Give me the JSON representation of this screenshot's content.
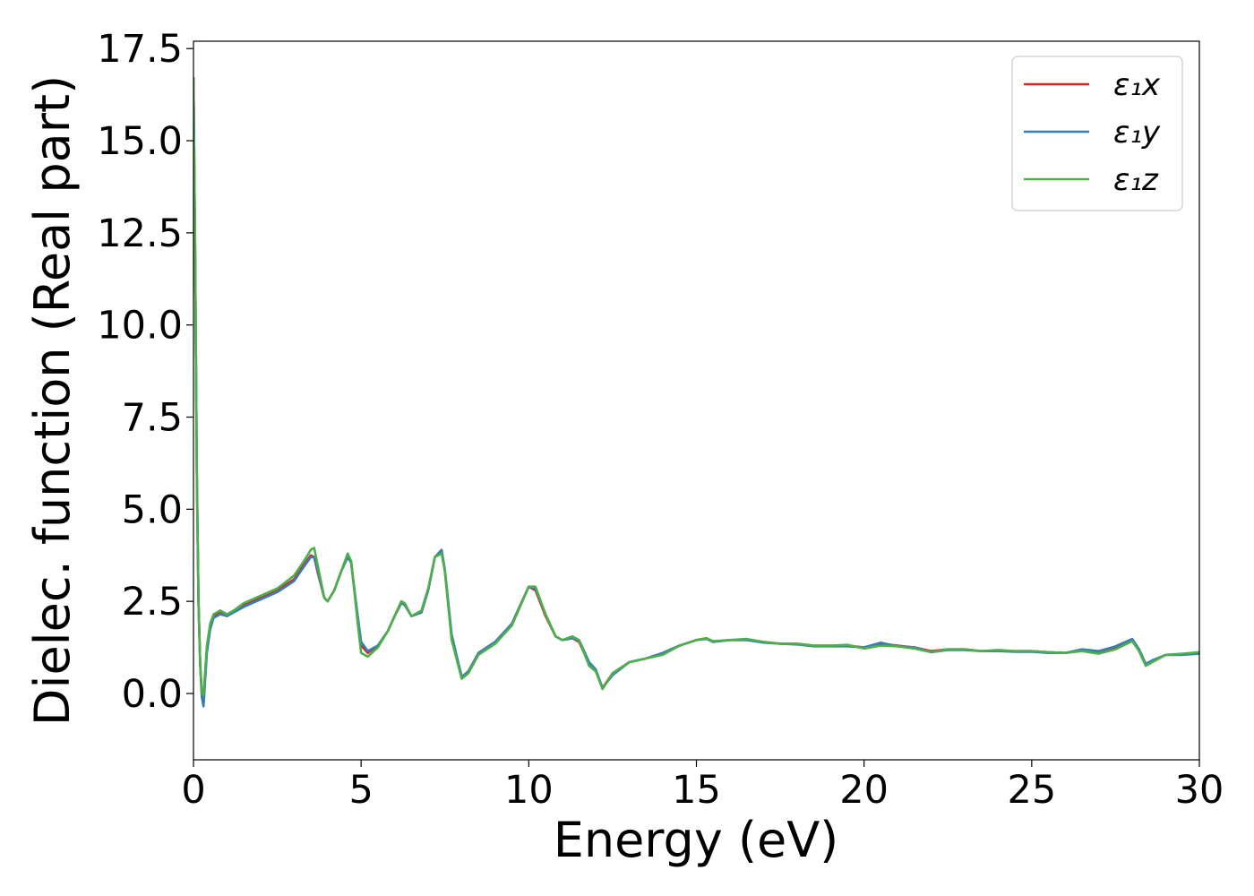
{
  "chart_data": {
    "type": "line",
    "xlabel": "Energy (eV)",
    "ylabel": "Dielec. function (Real part)",
    "xlim": [
      0,
      30
    ],
    "ylim": [
      -1.8,
      17.7
    ],
    "xticks": [
      0,
      5,
      10,
      15,
      20,
      25,
      30
    ],
    "xtick_labels": [
      "0",
      "5",
      "10",
      "15",
      "20",
      "25",
      "30"
    ],
    "yticks": [
      0.0,
      2.5,
      5.0,
      7.5,
      10.0,
      12.5,
      15.0,
      17.5
    ],
    "ytick_labels": [
      "0.0",
      "2.5",
      "5.0",
      "7.5",
      "10.0",
      "12.5",
      "15.0",
      "17.5"
    ],
    "grid": false,
    "legend": {
      "position": "top-right",
      "entries": [
        "ε₁x",
        "ε₁y",
        "ε₁z"
      ]
    },
    "series": [
      {
        "name": "ε₁x",
        "color": "#d62728",
        "x": [
          0.0,
          0.05,
          0.1,
          0.15,
          0.2,
          0.25,
          0.3,
          0.4,
          0.5,
          0.6,
          0.8,
          1.0,
          1.2,
          1.5,
          2.0,
          2.5,
          3.0,
          3.3,
          3.5,
          3.6,
          3.7,
          3.9,
          4.0,
          4.2,
          4.4,
          4.6,
          4.7,
          4.9,
          5.0,
          5.2,
          5.5,
          5.8,
          6.0,
          6.2,
          6.3,
          6.5,
          6.8,
          7.0,
          7.2,
          7.4,
          7.5,
          7.7,
          8.0,
          8.2,
          8.5,
          9.0,
          9.5,
          10.0,
          10.2,
          10.5,
          10.8,
          11.0,
          11.3,
          11.5,
          11.8,
          12.0,
          12.2,
          12.5,
          13.0,
          13.5,
          14.0,
          14.5,
          15.0,
          15.3,
          15.5,
          16.0,
          16.5,
          17.0,
          17.5,
          18.0,
          18.5,
          19.0,
          19.5,
          20.0,
          20.5,
          21.0,
          21.5,
          22.0,
          22.5,
          23.0,
          23.5,
          24.0,
          24.5,
          25.0,
          25.5,
          26.0,
          26.5,
          27.0,
          27.5,
          28.0,
          28.2,
          28.4,
          28.6,
          29.0,
          29.5,
          30.0
        ],
        "y": [
          16.7,
          12.0,
          6.0,
          2.5,
          0.8,
          -0.1,
          -0.1,
          1.2,
          1.8,
          2.1,
          2.2,
          2.1,
          2.25,
          2.4,
          2.6,
          2.8,
          3.1,
          3.5,
          3.75,
          3.7,
          3.3,
          2.6,
          2.5,
          2.8,
          3.3,
          3.75,
          3.6,
          2.0,
          1.3,
          1.1,
          1.3,
          1.7,
          2.1,
          2.5,
          2.4,
          2.1,
          2.2,
          2.8,
          3.7,
          3.85,
          3.3,
          1.5,
          0.45,
          0.6,
          1.1,
          1.4,
          1.9,
          2.9,
          2.8,
          2.1,
          1.55,
          1.45,
          1.5,
          1.4,
          0.8,
          0.6,
          0.15,
          0.55,
          0.85,
          0.95,
          1.1,
          1.3,
          1.45,
          1.5,
          1.4,
          1.45,
          1.45,
          1.4,
          1.35,
          1.35,
          1.3,
          1.3,
          1.3,
          1.25,
          1.35,
          1.3,
          1.25,
          1.15,
          1.2,
          1.2,
          1.15,
          1.15,
          1.15,
          1.15,
          1.12,
          1.1,
          1.18,
          1.12,
          1.25,
          1.42,
          1.2,
          0.8,
          0.88,
          1.05,
          1.05,
          1.1
        ]
      },
      {
        "name": "ε₁y",
        "color": "#377eb8",
        "x": [
          0.0,
          0.05,
          0.1,
          0.15,
          0.2,
          0.25,
          0.3,
          0.4,
          0.5,
          0.6,
          0.8,
          1.0,
          1.2,
          1.5,
          2.0,
          2.5,
          3.0,
          3.3,
          3.5,
          3.6,
          3.7,
          3.9,
          4.0,
          4.2,
          4.4,
          4.6,
          4.7,
          4.9,
          5.0,
          5.2,
          5.5,
          5.8,
          6.0,
          6.2,
          6.3,
          6.5,
          6.8,
          7.0,
          7.2,
          7.4,
          7.5,
          7.7,
          8.0,
          8.2,
          8.5,
          9.0,
          9.5,
          10.0,
          10.2,
          10.5,
          10.8,
          11.0,
          11.3,
          11.5,
          11.8,
          12.0,
          12.2,
          12.5,
          13.0,
          13.5,
          14.0,
          14.5,
          15.0,
          15.3,
          15.5,
          16.0,
          16.5,
          17.0,
          17.5,
          18.0,
          18.5,
          19.0,
          19.5,
          20.0,
          20.5,
          21.0,
          21.5,
          22.0,
          22.5,
          23.0,
          23.5,
          24.0,
          24.5,
          25.0,
          25.5,
          26.0,
          26.5,
          27.0,
          27.5,
          28.0,
          28.2,
          28.4,
          28.6,
          29.0,
          29.5,
          30.0
        ],
        "y": [
          16.7,
          12.0,
          6.0,
          2.5,
          0.8,
          -0.1,
          -0.35,
          1.1,
          1.75,
          2.05,
          2.15,
          2.1,
          2.2,
          2.35,
          2.55,
          2.75,
          3.05,
          3.45,
          3.7,
          3.7,
          3.35,
          2.6,
          2.5,
          2.8,
          3.3,
          3.7,
          3.55,
          2.1,
          1.4,
          1.15,
          1.3,
          1.7,
          2.1,
          2.45,
          2.4,
          2.1,
          2.2,
          2.8,
          3.7,
          3.9,
          3.35,
          1.6,
          0.45,
          0.6,
          1.1,
          1.4,
          1.9,
          2.9,
          2.85,
          2.15,
          1.55,
          1.45,
          1.5,
          1.45,
          0.85,
          0.65,
          0.15,
          0.5,
          0.85,
          0.95,
          1.1,
          1.3,
          1.45,
          1.48,
          1.4,
          1.45,
          1.45,
          1.38,
          1.35,
          1.33,
          1.28,
          1.28,
          1.28,
          1.25,
          1.38,
          1.28,
          1.25,
          1.12,
          1.18,
          1.18,
          1.15,
          1.15,
          1.13,
          1.13,
          1.1,
          1.1,
          1.2,
          1.15,
          1.28,
          1.48,
          1.2,
          0.8,
          0.9,
          1.05,
          1.05,
          1.08
        ]
      },
      {
        "name": "ε₁z",
        "color": "#4daf4a",
        "x": [
          0.0,
          0.05,
          0.1,
          0.15,
          0.2,
          0.25,
          0.3,
          0.4,
          0.5,
          0.6,
          0.8,
          1.0,
          1.2,
          1.5,
          2.0,
          2.5,
          3.0,
          3.3,
          3.5,
          3.6,
          3.7,
          3.9,
          4.0,
          4.2,
          4.4,
          4.6,
          4.7,
          4.9,
          5.0,
          5.2,
          5.5,
          5.8,
          6.0,
          6.2,
          6.3,
          6.5,
          6.8,
          7.0,
          7.2,
          7.4,
          7.5,
          7.7,
          8.0,
          8.2,
          8.5,
          9.0,
          9.5,
          10.0,
          10.2,
          10.5,
          10.8,
          11.0,
          11.3,
          11.5,
          11.8,
          12.0,
          12.2,
          12.5,
          13.0,
          13.5,
          14.0,
          14.5,
          15.0,
          15.3,
          15.5,
          16.0,
          16.5,
          17.0,
          17.5,
          18.0,
          18.5,
          19.0,
          19.5,
          20.0,
          20.5,
          21.0,
          21.5,
          22.0,
          22.5,
          23.0,
          23.5,
          24.0,
          24.5,
          25.0,
          25.5,
          26.0,
          26.5,
          27.0,
          27.5,
          28.0,
          28.2,
          28.4,
          28.6,
          29.0,
          29.5,
          30.0
        ],
        "y": [
          16.7,
          12.0,
          6.0,
          2.5,
          0.8,
          0.0,
          -0.05,
          1.3,
          1.9,
          2.15,
          2.25,
          2.15,
          2.25,
          2.45,
          2.65,
          2.85,
          3.2,
          3.6,
          3.9,
          3.95,
          3.5,
          2.6,
          2.5,
          2.8,
          3.3,
          3.8,
          3.6,
          1.9,
          1.1,
          1.0,
          1.25,
          1.7,
          2.1,
          2.5,
          2.45,
          2.1,
          2.25,
          2.85,
          3.7,
          3.8,
          3.3,
          1.45,
          0.4,
          0.55,
          1.05,
          1.35,
          1.85,
          2.9,
          2.9,
          2.15,
          1.55,
          1.45,
          1.55,
          1.45,
          0.75,
          0.6,
          0.12,
          0.55,
          0.85,
          0.95,
          1.05,
          1.3,
          1.45,
          1.5,
          1.42,
          1.45,
          1.48,
          1.4,
          1.35,
          1.35,
          1.3,
          1.3,
          1.32,
          1.22,
          1.3,
          1.28,
          1.22,
          1.12,
          1.2,
          1.2,
          1.15,
          1.18,
          1.15,
          1.15,
          1.12,
          1.1,
          1.15,
          1.08,
          1.2,
          1.42,
          1.15,
          0.75,
          0.85,
          1.05,
          1.08,
          1.12
        ]
      }
    ]
  }
}
